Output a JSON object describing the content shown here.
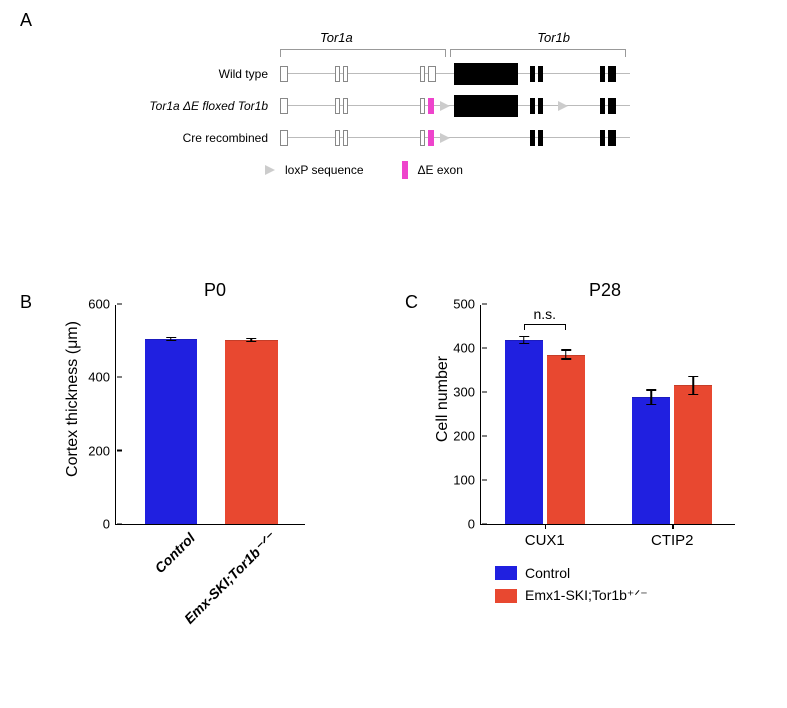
{
  "colors": {
    "control": "#2020e0",
    "treatment": "#e84830",
    "pink": "#ee44cc",
    "black": "#000000",
    "white": "#ffffff"
  },
  "panelA": {
    "label": "A",
    "gene1": "Tor1a",
    "gene2": "Tor1b",
    "rows": [
      "Wild type",
      "Tor1a ΔE floxed Tor1b",
      "Cre recombined"
    ],
    "legend": {
      "loxp": "loxP sequence",
      "de": "ΔE exon"
    }
  },
  "panelB": {
    "label": "B",
    "title": "P0",
    "ylabel": "Cortex thickness (μm)",
    "ylim": [
      0,
      600
    ],
    "ytick_step": 200,
    "categories": [
      "Control",
      "Emx-SKI;Tor1b⁻ᐟ⁻"
    ],
    "values": [
      505,
      502
    ],
    "errors": [
      6,
      6
    ],
    "bar_colors": [
      "#2020e0",
      "#e84830"
    ],
    "bar_width": 0.55
  },
  "panelC": {
    "label": "C",
    "title": "P28",
    "ylabel": "Cell number",
    "ylim": [
      0,
      500
    ],
    "ytick_step": 100,
    "groups": [
      "CUX1",
      "CTIP2"
    ],
    "series": [
      {
        "name": "Control",
        "color": "#2020e0",
        "values": [
          418,
          288
        ],
        "errors": [
          10,
          18
        ]
      },
      {
        "name": "Emx1-SKI;Tor1b⁺ᐟ⁻",
        "color": "#e84830",
        "values": [
          385,
          315
        ],
        "errors": [
          12,
          22
        ]
      }
    ],
    "ns_label": "n.s.",
    "legend": [
      "Control",
      "Emx1-SKI;Tor1b⁺ᐟ⁻"
    ]
  }
}
